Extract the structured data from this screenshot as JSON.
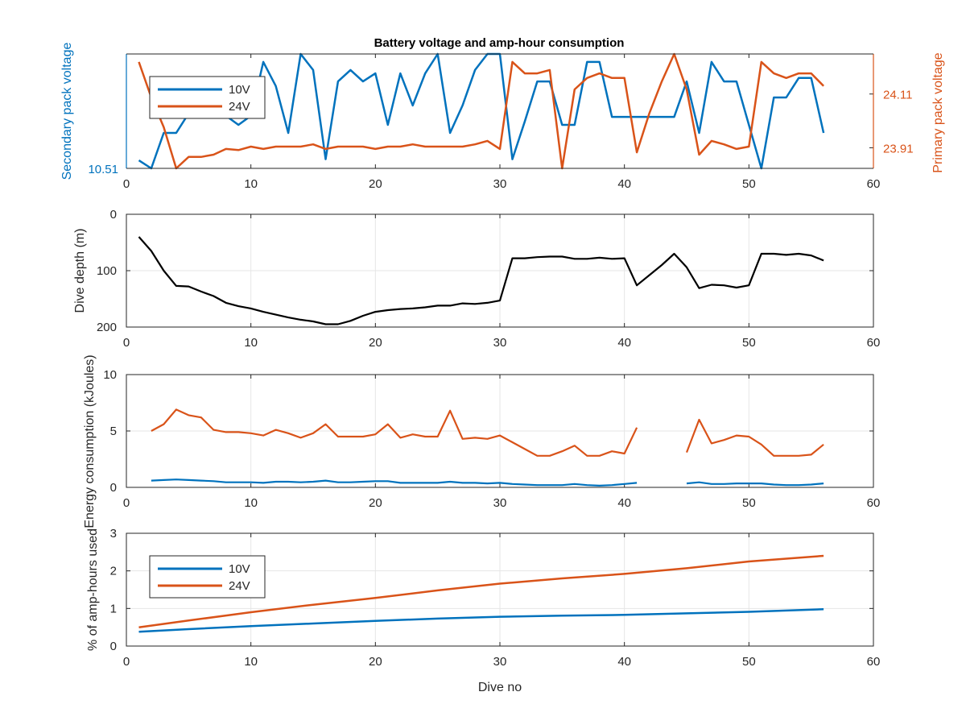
{
  "figure_title": "Battery voltage and amp-hour consumption",
  "colors": {
    "blue": "#0072bd",
    "orange": "#d95319",
    "black": "#000000",
    "grid": "#e6e6e6",
    "axis": "#262626"
  },
  "chart_data": [
    {
      "type": "line",
      "title": "Battery voltage and amp-hour consumption",
      "xlabel": "",
      "ylabel_left": "Secondary pack voltage",
      "ylabel_right": "Primary pack voltage",
      "xlim": [
        0,
        60
      ],
      "xticks": [
        0,
        10,
        20,
        30,
        40,
        50,
        60
      ],
      "left_axis": {
        "ticks": [
          "10.51"
        ]
      },
      "right_axis": {
        "ticks": [
          "24.11",
          "23.91"
        ]
      },
      "legend": {
        "position": "top-left",
        "entries": [
          "10V",
          "24V"
        ]
      },
      "grid": false,
      "series": [
        {
          "name": "10V",
          "axis": "left",
          "color": "#0072bd",
          "x": [
            1,
            2,
            3,
            4,
            5,
            6,
            7,
            8,
            9,
            10,
            11,
            12,
            13,
            14,
            15,
            16,
            17,
            18,
            19,
            20,
            21,
            22,
            23,
            24,
            25,
            26,
            27,
            28,
            29,
            30,
            31,
            32,
            33,
            34,
            35,
            36,
            37,
            38,
            39,
            40,
            41,
            42,
            43,
            44,
            45,
            46,
            47,
            48,
            49,
            50,
            51,
            52,
            53,
            54,
            55,
            56
          ],
          "y": [
            0.07,
            0.0,
            0.31,
            0.31,
            0.48,
            0.46,
            0.48,
            0.46,
            0.38,
            0.46,
            0.93,
            0.72,
            0.31,
            1.0,
            0.86,
            0.08,
            0.76,
            0.86,
            0.76,
            0.83,
            0.38,
            0.83,
            0.55,
            0.83,
            1.0,
            0.31,
            0.55,
            0.86,
            1.0,
            1.0,
            0.08,
            0.41,
            0.76,
            0.76,
            0.38,
            0.38,
            0.93,
            0.93,
            0.45,
            0.45,
            0.45,
            0.45,
            0.45,
            0.45,
            0.76,
            0.31,
            0.93,
            0.76,
            0.76,
            0.38,
            0.0,
            0.62,
            0.62,
            0.79,
            0.79,
            0.31
          ]
        },
        {
          "name": "24V",
          "axis": "right",
          "color": "#d95319",
          "x": [
            1,
            2,
            3,
            4,
            5,
            6,
            7,
            8,
            9,
            10,
            11,
            12,
            13,
            14,
            15,
            16,
            17,
            18,
            19,
            20,
            21,
            22,
            23,
            24,
            25,
            26,
            27,
            28,
            29,
            30,
            31,
            32,
            33,
            34,
            35,
            36,
            37,
            38,
            39,
            40,
            41,
            42,
            43,
            44,
            45,
            46,
            47,
            48,
            49,
            50,
            51,
            52,
            53,
            54,
            55,
            56
          ],
          "y": [
            0.93,
            0.62,
            0.36,
            0.0,
            0.1,
            0.1,
            0.12,
            0.17,
            0.16,
            0.19,
            0.17,
            0.19,
            0.19,
            0.19,
            0.21,
            0.17,
            0.19,
            0.19,
            0.19,
            0.17,
            0.19,
            0.19,
            0.21,
            0.19,
            0.19,
            0.19,
            0.19,
            0.21,
            0.24,
            0.17,
            0.93,
            0.83,
            0.83,
            0.86,
            0.0,
            0.69,
            0.79,
            0.83,
            0.79,
            0.79,
            0.14,
            0.48,
            0.76,
            1.0,
            0.69,
            0.12,
            0.24,
            0.21,
            0.17,
            0.19,
            0.93,
            0.83,
            0.79,
            0.83,
            0.83,
            0.72
          ]
        }
      ]
    },
    {
      "type": "line",
      "ylabel": "Dive depth (m)",
      "xlim": [
        0,
        60
      ],
      "ylim": [
        200,
        0
      ],
      "xticks": [
        0,
        10,
        20,
        30,
        40,
        50,
        60
      ],
      "yticks": [
        0,
        100,
        200
      ],
      "grid": true,
      "series": [
        {
          "color": "#000000",
          "x": [
            1,
            2,
            3,
            4,
            5,
            6,
            7,
            8,
            9,
            10,
            11,
            12,
            13,
            14,
            15,
            16,
            17,
            18,
            19,
            20,
            21,
            22,
            23,
            24,
            25,
            26,
            27,
            28,
            29,
            30,
            31,
            32,
            33,
            34,
            35,
            36,
            37,
            38,
            39,
            40,
            41,
            42,
            43,
            44,
            45,
            46,
            47,
            48,
            49,
            50,
            51,
            52,
            53,
            54,
            55,
            56
          ],
          "y": [
            40,
            65,
            100,
            127,
            128,
            137,
            145,
            157,
            163,
            167,
            173,
            178,
            183,
            187,
            190,
            195,
            195,
            189,
            180,
            173,
            170,
            168,
            167,
            165,
            162,
            162,
            158,
            159,
            157,
            153,
            78,
            78,
            76,
            75,
            75,
            79,
            79,
            77,
            79,
            78,
            126,
            108,
            90,
            70,
            94,
            131,
            125,
            126,
            130,
            126,
            70,
            70,
            72,
            70,
            73,
            82
          ]
        }
      ]
    },
    {
      "type": "line",
      "ylabel": "Energy consumption (kJoules)",
      "xlim": [
        0,
        60
      ],
      "ylim": [
        0,
        10
      ],
      "xticks": [
        0,
        10,
        20,
        30,
        40,
        50,
        60
      ],
      "yticks": [
        0,
        5,
        10
      ],
      "grid": true,
      "series": [
        {
          "name": "10V",
          "color": "#0072bd",
          "x": [
            2,
            3,
            4,
            5,
            6,
            7,
            8,
            9,
            10,
            11,
            12,
            13,
            14,
            15,
            16,
            17,
            18,
            19,
            20,
            21,
            22,
            23,
            24,
            25,
            26,
            27,
            28,
            29,
            30,
            31,
            32,
            33,
            34,
            35,
            36,
            37,
            38,
            39,
            40,
            41,
            null,
            45,
            46,
            47,
            48,
            49,
            50,
            51,
            52,
            53,
            54,
            55,
            56
          ],
          "y": [
            0.6,
            0.65,
            0.7,
            0.65,
            0.6,
            0.55,
            0.45,
            0.45,
            0.45,
            0.4,
            0.5,
            0.5,
            0.45,
            0.5,
            0.6,
            0.45,
            0.45,
            0.5,
            0.55,
            0.55,
            0.4,
            0.4,
            0.4,
            0.4,
            0.5,
            0.4,
            0.4,
            0.35,
            0.4,
            0.3,
            0.25,
            0.2,
            0.2,
            0.2,
            0.3,
            0.2,
            0.15,
            0.2,
            0.3,
            0.4,
            null,
            0.35,
            0.45,
            0.3,
            0.3,
            0.35,
            0.35,
            0.35,
            0.25,
            0.2,
            0.2,
            0.25,
            0.35
          ]
        },
        {
          "name": "24V",
          "color": "#d95319",
          "x": [
            2,
            3,
            4,
            5,
            6,
            7,
            8,
            9,
            10,
            11,
            12,
            13,
            14,
            15,
            16,
            17,
            18,
            19,
            20,
            21,
            22,
            23,
            24,
            25,
            26,
            27,
            28,
            29,
            30,
            31,
            32,
            33,
            34,
            35,
            36,
            37,
            38,
            39,
            40,
            41,
            null,
            45,
            46,
            47,
            48,
            49,
            50,
            51,
            52,
            53,
            54,
            55,
            56
          ],
          "y": [
            5.0,
            5.6,
            6.9,
            6.4,
            6.2,
            5.1,
            4.9,
            4.9,
            4.8,
            4.6,
            5.1,
            4.8,
            4.4,
            4.8,
            5.6,
            4.5,
            4.5,
            4.5,
            4.7,
            5.6,
            4.4,
            4.7,
            4.5,
            4.5,
            6.8,
            4.3,
            4.4,
            4.3,
            4.6,
            4.0,
            3.4,
            2.8,
            2.8,
            3.2,
            3.7,
            2.8,
            2.8,
            3.2,
            3.0,
            5.3,
            null,
            3.1,
            6.0,
            3.9,
            4.2,
            4.6,
            4.5,
            3.8,
            2.8,
            2.8,
            2.8,
            2.9,
            3.8
          ]
        }
      ]
    },
    {
      "type": "line",
      "xlabel": "Dive no",
      "ylabel": "% of amp-hours used",
      "xlim": [
        0,
        60
      ],
      "ylim": [
        0,
        3
      ],
      "xticks": [
        0,
        10,
        20,
        30,
        40,
        50,
        60
      ],
      "yticks": [
        0,
        1,
        2,
        3
      ],
      "grid": true,
      "legend": {
        "position": "top-left",
        "entries": [
          "10V",
          "24V"
        ]
      },
      "series": [
        {
          "name": "10V",
          "color": "#0072bd",
          "x": [
            1,
            5,
            10,
            15,
            20,
            25,
            30,
            35,
            40,
            45,
            50,
            56
          ],
          "y": [
            0.38,
            0.45,
            0.53,
            0.6,
            0.67,
            0.73,
            0.78,
            0.81,
            0.83,
            0.87,
            0.91,
            0.98
          ]
        },
        {
          "name": "24V",
          "color": "#d95319",
          "x": [
            1,
            5,
            10,
            15,
            20,
            25,
            30,
            35,
            40,
            45,
            50,
            56
          ],
          "y": [
            0.5,
            0.68,
            0.9,
            1.1,
            1.28,
            1.48,
            1.66,
            1.8,
            1.92,
            2.07,
            2.25,
            2.4
          ]
        }
      ]
    }
  ]
}
